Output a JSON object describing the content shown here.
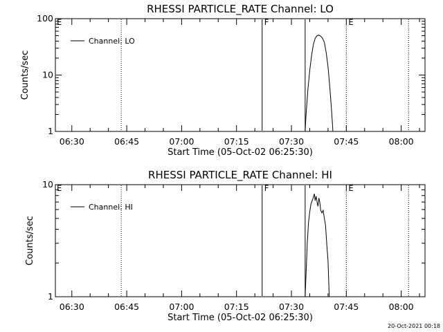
{
  "colors": {
    "background": "#ffffff",
    "foreground": "#000000"
  },
  "timestamp": "20-Oct-2021 00:18",
  "chart_data": [
    {
      "type": "line",
      "title": "RHESSI PARTICLE_RATE Channel: LO",
      "xlabel": "Start Time (05-Oct-02 06:25:30)",
      "ylabel": "Counts/sec",
      "x_scale": "time",
      "xlim": [
        "06:25:30",
        "08:06:30"
      ],
      "x_ticks": [
        "06:30",
        "06:45",
        "07:00",
        "07:15",
        "07:30",
        "07:45",
        "08:00"
      ],
      "y_scale": "log",
      "ylim": [
        1,
        100
      ],
      "y_ticks": [
        {
          "value": 1,
          "label": "1"
        },
        {
          "value": 10,
          "label": "10"
        },
        {
          "value": 100,
          "label": "100"
        }
      ],
      "grid": false,
      "legend": {
        "position": "top-left"
      },
      "series": [
        {
          "name": "Channel: LO",
          "points": [
            [
              "07:33:45",
              1.0
            ],
            [
              "07:34:00",
              2.0
            ],
            [
              "07:34:30",
              5.5
            ],
            [
              "07:35:00",
              12
            ],
            [
              "07:35:30",
              22
            ],
            [
              "07:36:00",
              35
            ],
            [
              "07:36:30",
              45
            ],
            [
              "07:37:00",
              50
            ],
            [
              "07:37:30",
              51
            ],
            [
              "07:38:00",
              49
            ],
            [
              "07:38:30",
              45
            ],
            [
              "07:39:00",
              38
            ],
            [
              "07:39:30",
              25
            ],
            [
              "07:40:00",
              14
            ],
            [
              "07:40:30",
              6
            ],
            [
              "07:41:00",
              2.2
            ],
            [
              "07:41:20",
              1.0
            ]
          ]
        }
      ],
      "markers": [
        {
          "time": "06:43:30",
          "label": "",
          "style": "dotted"
        },
        {
          "time": "07:22:00",
          "label": "F",
          "style": "solid"
        },
        {
          "time": "07:33:45",
          "label": "",
          "style": "solid"
        },
        {
          "time": "07:45:00",
          "label": "E",
          "style": "dotted"
        },
        {
          "time": "08:02:00",
          "label": "",
          "style": "dotted"
        }
      ],
      "edge_label": "E"
    },
    {
      "type": "line",
      "title": "RHESSI PARTICLE_RATE Channel: HI",
      "xlabel": "Start Time (05-Oct-02 06:25:30)",
      "ylabel": "Counts/sec",
      "x_scale": "time",
      "xlim": [
        "06:25:30",
        "08:06:30"
      ],
      "x_ticks": [
        "06:30",
        "06:45",
        "07:00",
        "07:15",
        "07:30",
        "07:45",
        "08:00"
      ],
      "y_scale": "log",
      "ylim": [
        1,
        10
      ],
      "y_ticks": [
        {
          "value": 1,
          "label": "1"
        },
        {
          "value": 10,
          "label": "10"
        }
      ],
      "grid": false,
      "legend": {
        "position": "top-left"
      },
      "series": [
        {
          "name": "Channel: HI",
          "points": [
            [
              "07:33:45",
              1.0
            ],
            [
              "07:34:00",
              1.6
            ],
            [
              "07:34:20",
              3.0
            ],
            [
              "07:34:40",
              4.6
            ],
            [
              "07:35:00",
              5.7
            ],
            [
              "07:35:20",
              6.7
            ],
            [
              "07:35:40",
              7.2
            ],
            [
              "07:36:00",
              7.7
            ],
            [
              "07:36:15",
              8.3
            ],
            [
              "07:36:30",
              7.2
            ],
            [
              "07:36:45",
              7.9
            ],
            [
              "07:37:00",
              7.0
            ],
            [
              "07:37:15",
              6.4
            ],
            [
              "07:37:30",
              7.6
            ],
            [
              "07:37:45",
              7.0
            ],
            [
              "07:38:00",
              5.9
            ],
            [
              "07:38:20",
              5.6
            ],
            [
              "07:38:40",
              5.9
            ],
            [
              "07:39:00",
              5.0
            ],
            [
              "07:39:20",
              4.3
            ],
            [
              "07:39:40",
              2.9
            ],
            [
              "07:40:00",
              2.1
            ],
            [
              "07:40:20",
              1.0
            ]
          ]
        }
      ],
      "markers": [
        {
          "time": "06:43:30",
          "label": "",
          "style": "dotted"
        },
        {
          "time": "07:22:00",
          "label": "F",
          "style": "solid"
        },
        {
          "time": "07:33:45",
          "label": "",
          "style": "solid"
        },
        {
          "time": "07:45:00",
          "label": "E",
          "style": "dotted"
        },
        {
          "time": "08:02:00",
          "label": "",
          "style": "dotted"
        }
      ],
      "edge_label": "E"
    }
  ]
}
